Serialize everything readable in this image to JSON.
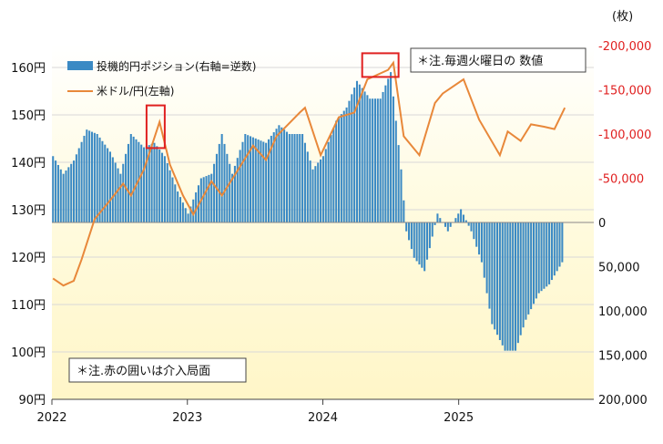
{
  "chart_data": {
    "type": "bar+line",
    "left_axis": {
      "ticks": [
        "160円",
        "150円",
        "140円",
        "130円",
        "120円",
        "110円",
        "100円",
        "90円"
      ],
      "ylim": [
        90,
        165
      ]
    },
    "right_axis": {
      "unit": "(枚)",
      "ticks": [
        "-200,000",
        "-150,000",
        "-100,000",
        "-50,000",
        "0",
        "50,000",
        "100,000",
        "150,000",
        "200,000"
      ],
      "ylim": [
        -200000,
        200000
      ],
      "inverted": true
    },
    "x_ticks": [
      "2022",
      "2023",
      "2024",
      "2025"
    ],
    "x_range": [
      "2022-01-01",
      "2025-12-31"
    ],
    "legend": {
      "bars": "投機的円ポジション(右軸=逆数)",
      "line": "米ドル/円(左軸)"
    },
    "notes": {
      "top": "＊注.毎週火曜日の 数値",
      "bottom": "＊注.赤の囲いは介入局面"
    },
    "highlight_color": "#e02020",
    "bar_color": "#3b8ac4",
    "line_color": "#e8883a",
    "bar_series": {
      "name": "投機的円ポジション(右軸=逆数)",
      "dates": [
        "2022-01-04",
        "2022-02-01",
        "2022-03-01",
        "2022-04-05",
        "2022-05-03",
        "2022-06-07",
        "2022-07-05",
        "2022-08-02",
        "2022-09-06",
        "2022-10-04",
        "2022-11-01",
        "2022-12-06",
        "2023-01-03",
        "2023-02-07",
        "2023-03-07",
        "2023-04-04",
        "2023-05-02",
        "2023-06-06",
        "2023-07-04",
        "2023-08-01",
        "2023-09-05",
        "2023-10-03",
        "2023-11-07",
        "2023-12-05",
        "2024-01-02",
        "2024-02-06",
        "2024-03-05",
        "2024-04-02",
        "2024-05-07",
        "2024-06-04",
        "2024-07-02",
        "2024-07-30",
        "2024-08-13",
        "2024-09-03",
        "2024-10-01",
        "2024-11-05",
        "2024-12-03",
        "2025-01-07",
        "2025-02-04",
        "2025-03-04",
        "2025-04-01",
        "2025-05-06",
        "2025-06-03",
        "2025-07-01",
        "2025-08-05",
        "2025-09-02",
        "2025-10-07"
      ],
      "values": [
        -75000,
        -55000,
        -70000,
        -105000,
        -100000,
        -80000,
        -55000,
        -100000,
        -85000,
        -90000,
        -75000,
        -35000,
        -10000,
        -50000,
        -55000,
        -100000,
        -55000,
        -100000,
        -95000,
        -90000,
        -110000,
        -100000,
        -100000,
        -60000,
        -75000,
        -115000,
        -130000,
        -160000,
        -140000,
        -140000,
        -170000,
        -60000,
        10000,
        40000,
        55000,
        -10000,
        10000,
        -15000,
        10000,
        45000,
        115000,
        145000,
        145000,
        110000,
        80000,
        70000,
        45000
      ]
    },
    "line_series": {
      "name": "米ドル/円(左軸)",
      "dates": [
        "2022-01-04",
        "2022-02-01",
        "2022-03-01",
        "2022-03-22",
        "2022-04-26",
        "2022-06-07",
        "2022-07-12",
        "2022-08-02",
        "2022-09-06",
        "2022-10-18",
        "2022-11-15",
        "2022-12-20",
        "2023-01-17",
        "2023-03-07",
        "2023-04-04",
        "2023-05-30",
        "2023-06-27",
        "2023-08-01",
        "2023-08-29",
        "2023-10-31",
        "2023-11-14",
        "2023-12-26",
        "2024-02-13",
        "2024-03-26",
        "2024-04-30",
        "2024-06-25",
        "2024-07-09",
        "2024-08-06",
        "2024-09-17",
        "2024-10-29",
        "2024-11-19",
        "2025-01-14",
        "2025-02-25",
        "2025-04-22",
        "2025-05-13",
        "2025-06-17",
        "2025-07-15",
        "2025-08-19",
        "2025-09-16",
        "2025-10-14"
      ],
      "values": [
        115.5,
        114.0,
        115.0,
        119.5,
        128.0,
        132.0,
        135.5,
        133.0,
        138.5,
        148.5,
        139.5,
        133.0,
        129.0,
        136.0,
        133.0,
        140.0,
        143.5,
        140.5,
        145.5,
        150.5,
        151.5,
        141.5,
        149.5,
        150.5,
        157.5,
        159.5,
        161.0,
        145.5,
        141.5,
        152.5,
        154.5,
        157.5,
        149.0,
        141.5,
        146.5,
        144.5,
        148.0,
        147.5,
        147.0,
        151.5
      ]
    },
    "intervention_periods": [
      [
        "2022-09-13",
        "2022-11-01"
      ],
      [
        "2024-04-16",
        "2024-07-23"
      ]
    ],
    "xlabel": "",
    "ylabel": ""
  }
}
